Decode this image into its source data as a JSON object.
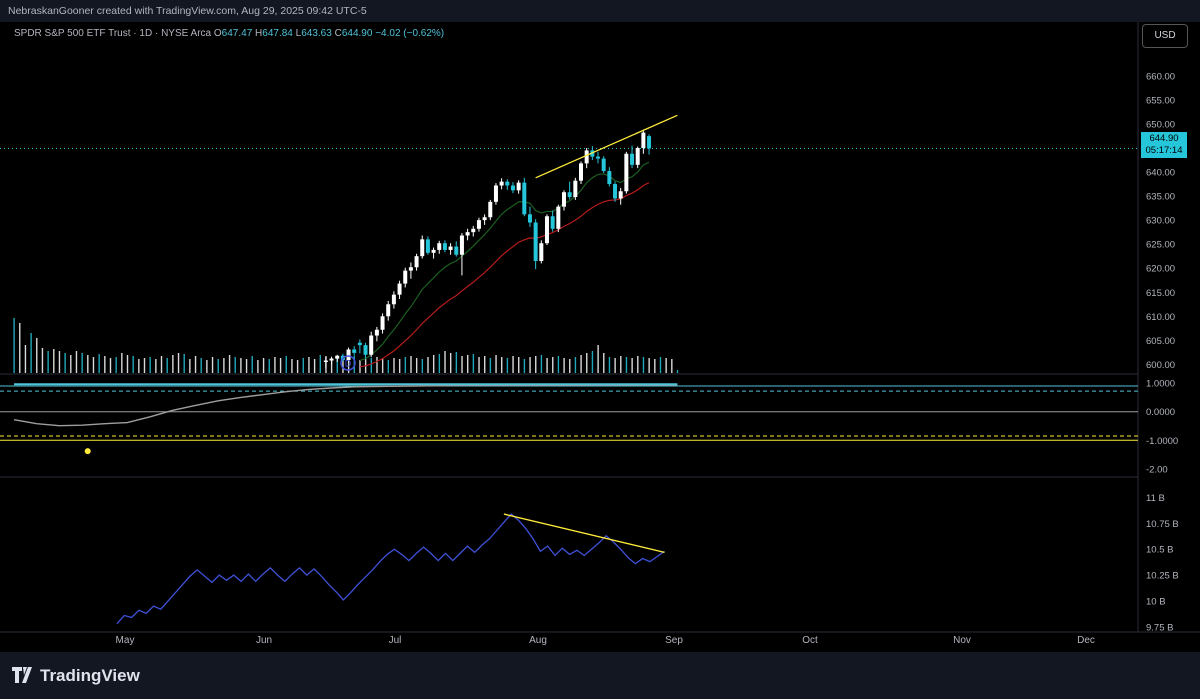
{
  "header": {
    "attribution": "NebraskanGooner created with TradingView.com, Aug 29, 2025 09:42 UTC-5"
  },
  "legend": {
    "symbol": "SPDR S&P 500 ETF Trust · 1D · NYSE Arca",
    "o_label": "O",
    "o": "647.47",
    "h_label": "H",
    "h": "647.84",
    "l_label": "L",
    "l": "643.63",
    "c_label": "C",
    "c": "644.90",
    "change": "−4.02 (−0.62%)"
  },
  "currency_button": "USD",
  "last_price": {
    "price": "644.90",
    "countdown": "05:17:14"
  },
  "footer": {
    "brand": "TradingView"
  },
  "colors": {
    "up": "#ffffff",
    "down": "#26c6da",
    "ema_fast": "#1b5e20",
    "ema_slow": "#b71c1c",
    "trendline": "#ffeb3b",
    "obv": "#3f51d8",
    "osc": "#9e9e9e",
    "band": "#4fc3d8",
    "dash": "#ffeb3b"
  },
  "chart_data": [
    {
      "type": "candlestick",
      "title": "SPDR S&P 500 ETF Trust · 1D · NYSE Arca",
      "ylabel": "USD",
      "ylim": [
        598,
        666
      ],
      "y_ticks": [
        "660.00",
        "655.00",
        "650.00",
        "645.00",
        "640.00",
        "635.00",
        "630.00",
        "625.00",
        "620.00",
        "615.00",
        "610.00",
        "605.00",
        "600.00"
      ],
      "x_labels": [
        "May",
        "Jun",
        "Jul",
        "Aug",
        "Sep",
        "Oct",
        "Nov",
        "Dec"
      ],
      "start_day_index": 5,
      "candles": [
        [
          604.5,
          605.2,
          602.3,
          604.0
        ],
        [
          604.0,
          604.5,
          601.2,
          602.0
        ],
        [
          602.0,
          606.8,
          601.5,
          606.0
        ],
        [
          606.0,
          607.8,
          604.8,
          607.2
        ],
        [
          607.2,
          610.6,
          606.4,
          610.0
        ],
        [
          610.0,
          613.2,
          609.1,
          612.5
        ],
        [
          612.5,
          615.2,
          611.6,
          614.5
        ],
        [
          614.5,
          617.4,
          613.6,
          616.8
        ],
        [
          616.8,
          620.1,
          616.0,
          619.5
        ],
        [
          619.5,
          621.2,
          617.8,
          620.2
        ],
        [
          620.2,
          623.0,
          619.5,
          622.5
        ],
        [
          622.5,
          626.8,
          622.0,
          626.0
        ],
        [
          626.0,
          626.6,
          622.8,
          623.2
        ],
        [
          623.2,
          624.3,
          622.0,
          623.8
        ],
        [
          623.8,
          625.7,
          623.0,
          625.2
        ],
        [
          625.2,
          625.8,
          623.3,
          623.8
        ],
        [
          623.8,
          625.2,
          622.8,
          624.5
        ],
        [
          624.5,
          625.6,
          622.4,
          622.8
        ],
        [
          622.8,
          627.3,
          618.5,
          626.8
        ],
        [
          626.8,
          628.2,
          625.8,
          627.5
        ],
        [
          627.5,
          628.8,
          626.6,
          628.2
        ],
        [
          628.2,
          630.5,
          627.6,
          630.0
        ],
        [
          630.0,
          631.2,
          629.0,
          630.6
        ],
        [
          630.6,
          634.2,
          630.0,
          633.8
        ],
        [
          633.8,
          637.7,
          633.2,
          637.2
        ],
        [
          637.2,
          638.7,
          636.4,
          638.0
        ],
        [
          638.0,
          638.5,
          636.3,
          637.2
        ],
        [
          637.2,
          637.9,
          635.6,
          636.2
        ],
        [
          636.2,
          638.3,
          635.5,
          637.8
        ],
        [
          637.8,
          638.8,
          630.8,
          631.2
        ],
        [
          631.2,
          632.8,
          628.6,
          629.5
        ],
        [
          629.5,
          630.2,
          619.8,
          621.5
        ],
        [
          621.5,
          625.8,
          621.0,
          625.2
        ],
        [
          625.2,
          631.2,
          624.8,
          630.8
        ],
        [
          630.8,
          632.0,
          627.6,
          628.2
        ],
        [
          628.2,
          633.2,
          627.5,
          632.8
        ],
        [
          632.8,
          636.2,
          632.0,
          635.8
        ],
        [
          635.8,
          638.0,
          634.3,
          634.8
        ],
        [
          634.8,
          638.8,
          634.2,
          638.2
        ],
        [
          638.2,
          642.2,
          637.5,
          641.8
        ],
        [
          641.8,
          645.0,
          640.8,
          644.5
        ],
        [
          644.5,
          645.4,
          642.5,
          643.2
        ],
        [
          643.2,
          644.2,
          641.8,
          642.8
        ],
        [
          642.8,
          643.3,
          639.8,
          640.2
        ],
        [
          640.2,
          641.0,
          637.0,
          637.5
        ],
        [
          637.5,
          638.0,
          633.8,
          634.5
        ],
        [
          634.5,
          636.7,
          633.2,
          636.0
        ],
        [
          636.0,
          644.2,
          635.5,
          643.8
        ],
        [
          643.8,
          645.5,
          640.8,
          641.5
        ],
        [
          641.5,
          645.3,
          640.8,
          645.0
        ],
        [
          645.0,
          648.8,
          643.8,
          648.2
        ],
        [
          647.47,
          647.84,
          643.63,
          644.9
        ]
      ],
      "ema_fast": [
        600.8,
        601.2,
        602.0,
        603.0,
        604.2,
        605.8,
        607.2,
        608.8,
        610.5,
        612.0,
        613.8,
        615.6,
        616.8,
        618.0,
        619.2,
        620.2,
        621.0,
        621.5,
        622.5,
        623.5,
        624.6,
        625.8,
        627.0,
        628.3,
        629.8,
        631.2,
        632.2,
        633.0,
        633.8,
        633.8,
        633.5,
        632.0,
        631.5,
        631.8,
        631.8,
        632.5,
        633.5,
        634.0,
        635.0,
        636.2,
        637.8,
        638.8,
        639.5,
        639.6,
        639.2,
        638.2,
        637.8,
        638.6,
        639.0,
        640.0,
        641.5,
        642.0
      ],
      "ema_slow": [
        599.5,
        599.7,
        600.1,
        600.6,
        601.2,
        602.0,
        602.8,
        603.8,
        604.9,
        606.0,
        607.2,
        608.5,
        609.6,
        610.7,
        611.8,
        612.7,
        613.6,
        614.3,
        615.3,
        616.2,
        617.1,
        618.1,
        619.1,
        620.2,
        621.4,
        622.6,
        623.6,
        624.5,
        625.4,
        625.9,
        626.3,
        626.2,
        626.5,
        627.0,
        627.4,
        628.0,
        628.7,
        629.3,
        630.0,
        630.8,
        631.8,
        632.6,
        633.3,
        633.8,
        634.1,
        634.2,
        634.4,
        635.1,
        635.6,
        636.3,
        637.2,
        637.8
      ],
      "trendlines": [
        {
          "from": [
            31,
            638.8
          ],
          "to": [
            56,
            651.8
          ]
        }
      ]
    },
    {
      "type": "bar",
      "title": "Volume",
      "values": [
        [
          0,
          55
        ],
        [
          1,
          50
        ],
        [
          2,
          28
        ],
        [
          3,
          40
        ],
        [
          4,
          35
        ],
        [
          5,
          25
        ],
        [
          6,
          22
        ],
        [
          7,
          24
        ],
        [
          8,
          22
        ],
        [
          9,
          20
        ],
        [
          10,
          18
        ],
        [
          11,
          22
        ],
        [
          12,
          20
        ],
        [
          13,
          18
        ],
        [
          14,
          16
        ],
        [
          15,
          19
        ],
        [
          16,
          17
        ],
        [
          17,
          15
        ],
        [
          18,
          16
        ],
        [
          19,
          20
        ],
        [
          20,
          18
        ],
        [
          21,
          17
        ],
        [
          22,
          14
        ],
        [
          23,
          15
        ],
        [
          24,
          16
        ],
        [
          25,
          14
        ],
        [
          26,
          17
        ],
        [
          27,
          15
        ],
        [
          28,
          18
        ],
        [
          29,
          20
        ],
        [
          30,
          19
        ],
        [
          31,
          14
        ],
        [
          32,
          17
        ],
        [
          33,
          15
        ],
        [
          34,
          13
        ],
        [
          35,
          16
        ],
        [
          36,
          14
        ],
        [
          37,
          15
        ],
        [
          38,
          18
        ],
        [
          39,
          16
        ],
        [
          40,
          15
        ],
        [
          41,
          14
        ],
        [
          42,
          17
        ],
        [
          43,
          13
        ],
        [
          44,
          15
        ],
        [
          45,
          14
        ],
        [
          46,
          16
        ],
        [
          47,
          15
        ],
        [
          48,
          17
        ],
        [
          49,
          14
        ],
        [
          50,
          13
        ],
        [
          51,
          15
        ],
        [
          52,
          16
        ],
        [
          53,
          14
        ],
        [
          54,
          18
        ],
        [
          55,
          17
        ],
        [
          56,
          15
        ],
        [
          57,
          16
        ],
        [
          58,
          14
        ],
        [
          59,
          15
        ],
        [
          60,
          17
        ],
        [
          61,
          13
        ],
        [
          62,
          14
        ],
        [
          63,
          15
        ],
        [
          64,
          16
        ],
        [
          65,
          14
        ],
        [
          66,
          13
        ],
        [
          67,
          15
        ],
        [
          68,
          14
        ],
        [
          69,
          16
        ],
        [
          70,
          17
        ],
        [
          71,
          15
        ],
        [
          72,
          14
        ],
        [
          73,
          16
        ],
        [
          74,
          18
        ],
        [
          75,
          19
        ],
        [
          76,
          22
        ],
        [
          77,
          20
        ],
        [
          78,
          21
        ],
        [
          79,
          17
        ],
        [
          80,
          18
        ],
        [
          81,
          19
        ],
        [
          82,
          16
        ],
        [
          83,
          17
        ],
        [
          84,
          15
        ],
        [
          85,
          18
        ],
        [
          86,
          16
        ],
        [
          87,
          15
        ],
        [
          88,
          17
        ],
        [
          89,
          16
        ],
        [
          90,
          14
        ],
        [
          91,
          16
        ],
        [
          92,
          17
        ],
        [
          93,
          18
        ],
        [
          94,
          15
        ],
        [
          95,
          16
        ],
        [
          96,
          17
        ],
        [
          97,
          15
        ],
        [
          98,
          14
        ],
        [
          99,
          16
        ],
        [
          100,
          18
        ],
        [
          101,
          20
        ],
        [
          102,
          22
        ],
        [
          103,
          28
        ],
        [
          104,
          20
        ],
        [
          105,
          16
        ],
        [
          106,
          15
        ],
        [
          107,
          17
        ],
        [
          108,
          16
        ],
        [
          109,
          15
        ],
        [
          110,
          17
        ],
        [
          111,
          16
        ],
        [
          112,
          15
        ],
        [
          113,
          14
        ],
        [
          114,
          16
        ],
        [
          115,
          15
        ],
        [
          116,
          14
        ],
        [
          117,
          3
        ]
      ]
    },
    {
      "type": "line",
      "title": "Oscillator",
      "ylim": [
        -2.25,
        1.25
      ],
      "y_ticks": [
        "1.0000",
        "0.0000",
        "-1.0000",
        "-2.00"
      ],
      "reference_lines": [
        0.9,
        0.72,
        0.0,
        -0.85,
        -1.0
      ],
      "series": [
        {
          "name": "oscillator",
          "x": [
            0,
            4,
            8,
            12,
            16,
            20,
            24,
            28,
            32,
            36,
            40,
            44,
            48,
            52,
            56,
            60,
            70,
            80,
            117
          ],
          "values": [
            -0.28,
            -0.42,
            -0.49,
            -0.47,
            -0.42,
            -0.38,
            -0.18,
            0.05,
            0.22,
            0.38,
            0.5,
            0.6,
            0.7,
            0.78,
            0.83,
            0.87,
            0.9,
            0.92,
            0.93
          ]
        },
        {
          "name": "band",
          "x": [
            0,
            117
          ],
          "values": [
            0.96,
            0.96
          ]
        }
      ],
      "marker": {
        "x": 13,
        "value": -1.38
      }
    },
    {
      "type": "line",
      "title": "On Balance Volume",
      "ylim": [
        9.7,
        11.15
      ],
      "y_ticks": [
        "11 B",
        "10.75 B",
        "10.5 B",
        "10.25 B",
        "10 B",
        "9.75 B"
      ],
      "series": [
        {
          "name": "obv",
          "values": [
            9.78,
            9.86,
            9.84,
            9.91,
            9.88,
            9.95,
            9.92,
            10.0,
            10.08,
            10.16,
            10.24,
            10.3,
            10.24,
            10.18,
            10.25,
            10.2,
            10.25,
            10.19,
            10.26,
            10.19,
            10.26,
            10.32,
            10.25,
            10.19,
            10.26,
            10.32,
            10.25,
            10.31,
            10.24,
            10.16,
            10.09,
            10.01,
            10.08,
            10.16,
            10.23,
            10.3,
            10.38,
            10.45,
            10.5,
            10.45,
            10.39,
            10.46,
            10.52,
            10.46,
            10.39,
            10.46,
            10.39,
            10.46,
            10.53,
            10.47,
            10.54,
            10.6,
            10.68,
            10.76,
            10.84,
            10.78,
            10.7,
            10.6,
            10.48,
            10.53,
            10.44,
            10.51,
            10.45,
            10.49,
            10.44,
            10.5,
            10.56,
            10.63,
            10.57,
            10.5,
            10.42,
            10.36,
            10.41,
            10.38,
            10.43,
            10.48
          ]
        },
        {
          "name": "trendline",
          "x": [
            53,
            75
          ],
          "values": [
            10.84,
            10.47
          ]
        }
      ]
    }
  ]
}
